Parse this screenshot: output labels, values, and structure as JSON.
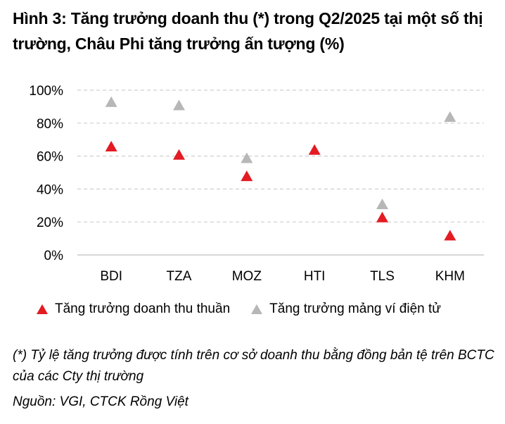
{
  "title": "Hình 3: Tăng trưởng doanh thu (*) trong Q2/2025 tại một số thị trường, Châu Phi tăng trưởng ấn tượng (%)",
  "chart_data": {
    "type": "scatter",
    "categories": [
      "BDI",
      "TZA",
      "MOZ",
      "HTI",
      "TLS",
      "KHM"
    ],
    "ylim": [
      0,
      100
    ],
    "yticks": [
      0,
      20,
      40,
      60,
      80,
      100
    ],
    "ytick_labels": [
      "0%",
      "20%",
      "40%",
      "60%",
      "80%",
      "100%"
    ],
    "grid": true,
    "legend_position": "bottom",
    "series": [
      {
        "name": "Tăng trưởng doanh thu thuần",
        "color": "#e31b23",
        "marker": "triangle",
        "values": [
          66,
          61,
          48,
          64,
          23,
          12
        ]
      },
      {
        "name": "Tăng trưởng mảng ví điện tử",
        "color": "#b7b7b7",
        "marker": "triangle",
        "values": [
          93,
          91,
          59,
          null,
          31,
          84
        ]
      }
    ]
  },
  "note": "(*) Tỷ lệ tăng trưởng được tính trên cơ sở doanh thu bằng đồng bản tệ trên BCTC của các Cty thị trường",
  "source": "Nguồn: VGI, CTCK Rồng Việt"
}
